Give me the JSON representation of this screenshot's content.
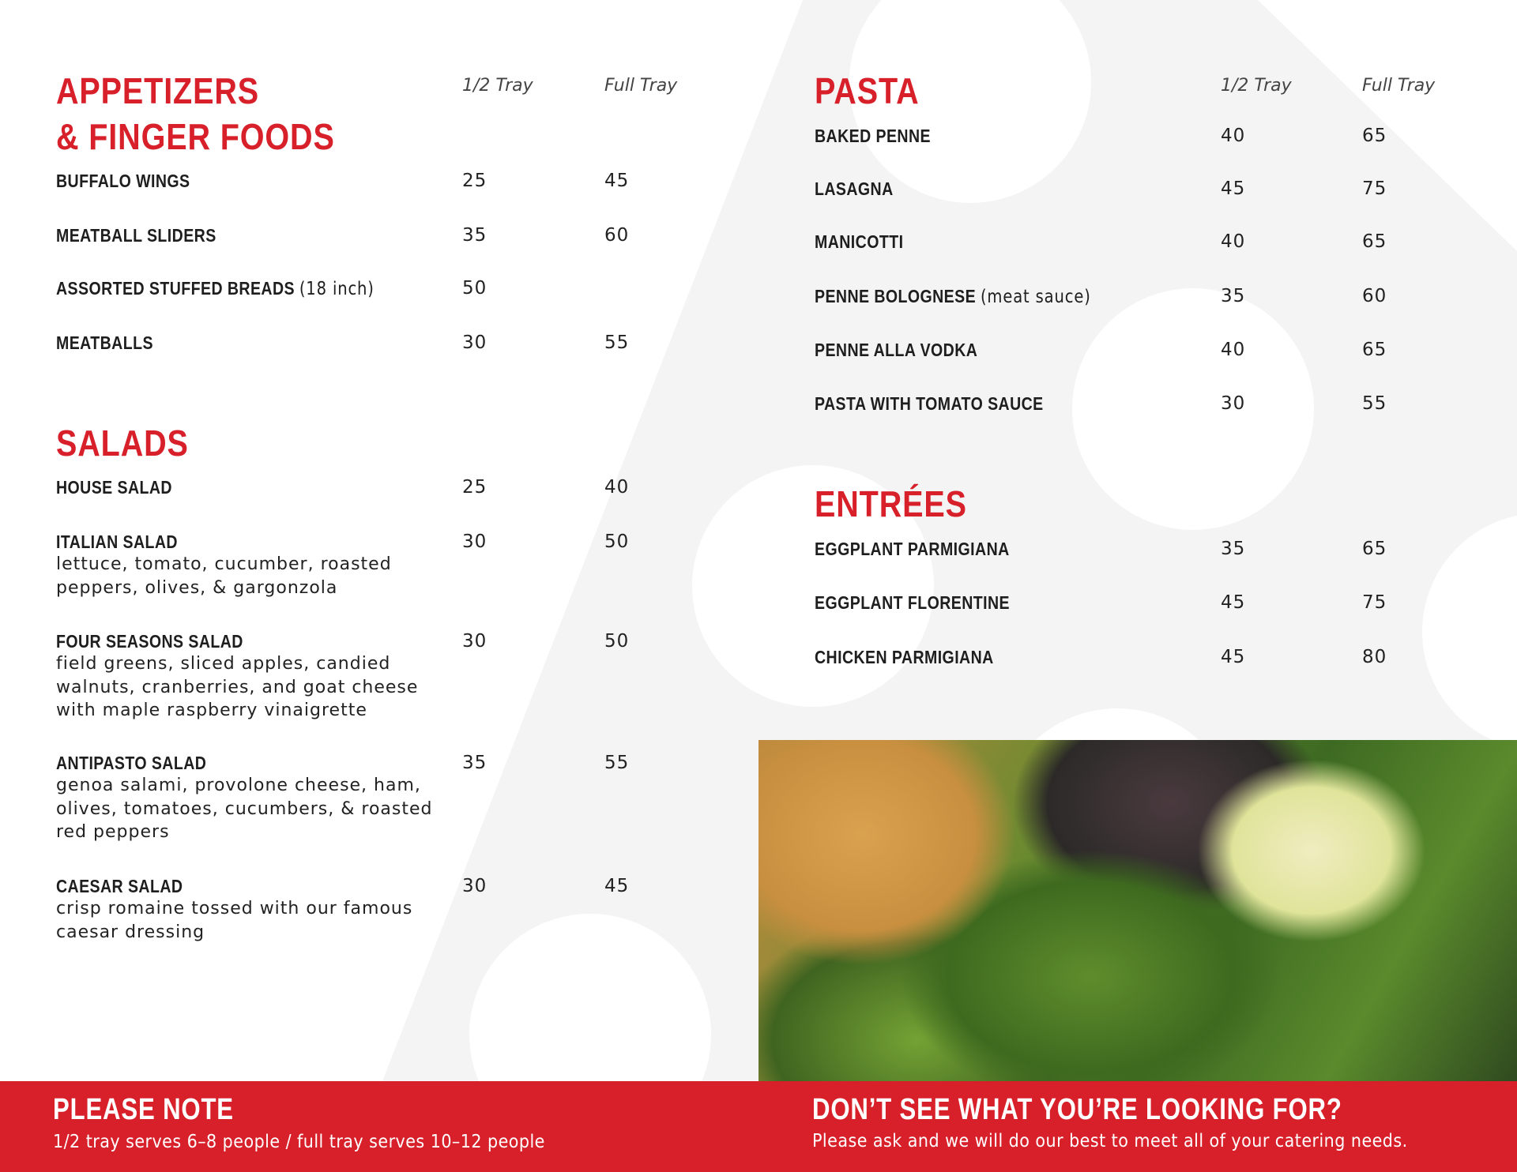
{
  "colors": {
    "accent": "#d8202a",
    "text": "#1e1e1e",
    "background_shape": "#f4f4f4"
  },
  "columns": {
    "half": "1/2 Tray",
    "full": "Full Tray"
  },
  "appetizers": {
    "title_line1": "APPETIZERS",
    "title_line2": "& FINGER FOODS",
    "items": [
      {
        "name": "BUFFALO WINGS",
        "note": "",
        "half": "25",
        "full": "45"
      },
      {
        "name": "MEATBALL SLIDERS",
        "note": "",
        "half": "35",
        "full": "60"
      },
      {
        "name": "ASSORTED STUFFED BREADS",
        "note": "(18 inch)",
        "half": "50",
        "full": ""
      },
      {
        "name": "MEATBALLS",
        "note": "",
        "half": "30",
        "full": "55"
      }
    ]
  },
  "salads": {
    "title": "SALADS",
    "items": [
      {
        "name": "HOUSE SALAD",
        "half": "25",
        "full": "40",
        "desc": []
      },
      {
        "name": "ITALIAN SALAD",
        "half": "30",
        "full": "50",
        "desc": [
          "lettuce, tomato, cucumber, roasted",
          "peppers, olives, & gargonzola"
        ]
      },
      {
        "name": "FOUR SEASONS SALAD",
        "half": "30",
        "full": "50",
        "desc": [
          "field greens, sliced apples, candied",
          "walnuts, cranberries, and goat cheese",
          "with maple raspberry vinaigrette"
        ]
      },
      {
        "name": "ANTIPASTO SALAD",
        "half": "35",
        "full": "55",
        "desc": [
          "genoa salami, provolone cheese, ham,",
          "olives, tomatoes, cucumbers, & roasted",
          "red peppers"
        ]
      },
      {
        "name": "CAESAR SALAD",
        "half": "30",
        "full": "45",
        "desc": [
          "crisp romaine tossed with our famous",
          "caesar dressing"
        ]
      }
    ]
  },
  "pasta": {
    "title": "PASTA",
    "items": [
      {
        "name": "BAKED PENNE",
        "note": "",
        "half": "40",
        "full": "65"
      },
      {
        "name": "LASAGNA",
        "note": "",
        "half": "45",
        "full": "75"
      },
      {
        "name": "MANICOTTI",
        "note": "",
        "half": "40",
        "full": "65"
      },
      {
        "name": "PENNE BOLOGNESE",
        "note": "(meat sauce)",
        "half": "35",
        "full": "60"
      },
      {
        "name": "PENNE ALLA VODKA",
        "note": "",
        "half": "40",
        "full": "65"
      },
      {
        "name": "PASTA WITH TOMATO SAUCE",
        "note": "",
        "half": "30",
        "full": "55"
      }
    ]
  },
  "entrees": {
    "title": "ENTRÉES",
    "items": [
      {
        "name": "EGGPLANT PARMIGIANA",
        "half": "35",
        "full": "65"
      },
      {
        "name": "EGGPLANT FLORENTINE",
        "half": "45",
        "full": "75"
      },
      {
        "name": "CHICKEN PARMIGIANA",
        "half": "45",
        "full": "80"
      }
    ]
  },
  "footer": {
    "note_title": "PLEASE NOTE",
    "note_text": "1/2 tray serves 6–8 people  /  full tray serves 10–12 people",
    "ask_title": "DON’T SEE WHAT YOU’RE LOOKING FOR?",
    "ask_text": "Please ask and we will do our best to meet all of your catering needs."
  }
}
